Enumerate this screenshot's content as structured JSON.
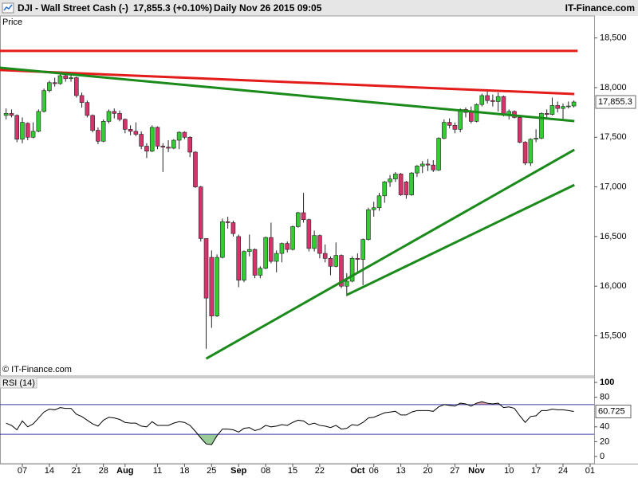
{
  "header": {
    "symbol": "DJI - Wall Street Cash (-)",
    "quote": "17,855.3 (+0.10%)",
    "period": "Daily",
    "timestamp": "Nov 26 2015 09:05",
    "brand": "IT-Finance.com"
  },
  "chart_data": [
    {
      "type": "candlestick",
      "panel_label": "Price",
      "watermark": "© IT-Finance.com",
      "up_color": "#33cc33",
      "down_color": "#d6336c",
      "xlim": [
        -1.13,
        108.75
      ],
      "xticks": [
        {
          "value": 3,
          "label": "07"
        },
        {
          "value": 8,
          "label": "14"
        },
        {
          "value": 13,
          "label": "21"
        },
        {
          "value": 18,
          "label": "28"
        },
        {
          "value": 22,
          "label": "Aug"
        },
        {
          "value": 28,
          "label": "11"
        },
        {
          "value": 33,
          "label": "18"
        },
        {
          "value": 38,
          "label": "25"
        },
        {
          "value": 43,
          "label": "Sep"
        },
        {
          "value": 48,
          "label": "08"
        },
        {
          "value": 53,
          "label": "15"
        },
        {
          "value": 58,
          "label": "22"
        },
        {
          "value": 65,
          "label": "Oct"
        },
        {
          "value": 68,
          "label": "06"
        },
        {
          "value": 73,
          "label": "13"
        },
        {
          "value": 78,
          "label": "20"
        },
        {
          "value": 83,
          "label": "27"
        },
        {
          "value": 87,
          "label": "Nov"
        },
        {
          "value": 93,
          "label": "10"
        },
        {
          "value": 98,
          "label": "17"
        },
        {
          "value": 103,
          "label": "24"
        },
        {
          "value": 108,
          "label": "01"
        }
      ],
      "ylim": [
        15095,
        18722
      ],
      "yticks": [
        {
          "value": 15500,
          "label": "15,500"
        },
        {
          "value": 16000,
          "label": "16,000"
        },
        {
          "value": 16500,
          "label": "16,500"
        },
        {
          "value": 17000,
          "label": "17,000"
        },
        {
          "value": 17500,
          "label": "17,500"
        },
        {
          "value": 18000,
          "label": "18,000"
        },
        {
          "value": 18500,
          "label": "18,500"
        }
      ],
      "last_value_label": "17,855.3",
      "ohlc": [
        [
          17720,
          17790,
          17680,
          17740
        ],
        [
          17740,
          17780,
          17700,
          17720
        ],
        [
          17720,
          17730,
          17450,
          17480
        ],
        [
          17480,
          17700,
          17440,
          17650
        ],
        [
          17640,
          17650,
          17470,
          17500
        ],
        [
          17500,
          17650,
          17490,
          17560
        ],
        [
          17560,
          17780,
          17550,
          17760
        ],
        [
          17760,
          17990,
          17750,
          17970
        ],
        [
          17970,
          18070,
          17950,
          18050
        ],
        [
          18050,
          18100,
          18010,
          18040
        ],
        [
          18040,
          18140,
          18030,
          18120
        ],
        [
          18120,
          18150,
          18060,
          18090
        ],
        [
          18090,
          18140,
          18060,
          18100
        ],
        [
          18100,
          18110,
          17900,
          17920
        ],
        [
          17920,
          17950,
          17800,
          17850
        ],
        [
          17850,
          17870,
          17700,
          17720
        ],
        [
          17720,
          17730,
          17550,
          17570
        ],
        [
          17570,
          17600,
          17430,
          17460
        ],
        [
          17460,
          17680,
          17450,
          17660
        ],
        [
          17660,
          17780,
          17640,
          17760
        ],
        [
          17760,
          17790,
          17690,
          17740
        ],
        [
          17740,
          17770,
          17660,
          17680
        ],
        [
          17680,
          17690,
          17540,
          17580
        ],
        [
          17580,
          17620,
          17520,
          17560
        ],
        [
          17560,
          17650,
          17510,
          17530
        ],
        [
          17530,
          17560,
          17380,
          17410
        ],
        [
          17410,
          17440,
          17290,
          17360
        ],
        [
          17360,
          17620,
          17350,
          17600
        ],
        [
          17600,
          17610,
          17380,
          17410
        ],
        [
          17410,
          17440,
          17150,
          17400
        ],
        [
          17400,
          17470,
          17350,
          17390
        ],
        [
          17390,
          17480,
          17380,
          17470
        ],
        [
          17470,
          17560,
          17380,
          17550
        ],
        [
          17550,
          17560,
          17480,
          17500
        ],
        [
          17500,
          17510,
          17300,
          17350
        ],
        [
          17350,
          17360,
          16990,
          17000
        ],
        [
          17000,
          17010,
          16450,
          16480
        ],
        [
          16480,
          16480,
          15370,
          15880
        ],
        [
          16290,
          16360,
          15580,
          15700
        ],
        [
          15700,
          16320,
          15690,
          16290
        ],
        [
          16290,
          16680,
          16280,
          16650
        ],
        [
          16650,
          16700,
          16580,
          16640
        ],
        [
          16640,
          16660,
          16500,
          16530
        ],
        [
          16500,
          16520,
          15990,
          16060
        ],
        [
          16060,
          16360,
          16040,
          16350
        ],
        [
          16350,
          16520,
          16300,
          16370
        ],
        [
          16370,
          16380,
          16080,
          16110
        ],
        [
          16110,
          16200,
          16080,
          16180
        ],
        [
          16180,
          16500,
          16170,
          16490
        ],
        [
          16490,
          16640,
          16230,
          16250
        ],
        [
          16250,
          16360,
          16140,
          16330
        ],
        [
          16330,
          16440,
          16240,
          16430
        ],
        [
          16430,
          16450,
          16340,
          16370
        ],
        [
          16370,
          16610,
          16360,
          16600
        ],
        [
          16600,
          16750,
          16590,
          16740
        ],
        [
          16740,
          16940,
          16640,
          16670
        ],
        [
          16670,
          16680,
          16350,
          16380
        ],
        [
          16380,
          16560,
          16350,
          16510
        ],
        [
          16510,
          16520,
          16280,
          16330
        ],
        [
          16330,
          16420,
          16240,
          16280
        ],
        [
          16280,
          16300,
          16110,
          16200
        ],
        [
          16200,
          16440,
          16190,
          16310
        ],
        [
          16310,
          16320,
          15980,
          16000
        ],
        [
          16000,
          16130,
          15900,
          16050
        ],
        [
          16050,
          16300,
          16040,
          16280
        ],
        [
          16280,
          16330,
          16130,
          16270
        ],
        [
          16270,
          16480,
          16010,
          16470
        ],
        [
          16470,
          16790,
          16460,
          16770
        ],
        [
          16770,
          16850,
          16700,
          16790
        ],
        [
          16790,
          16940,
          16760,
          16910
        ],
        [
          16910,
          17060,
          16840,
          17050
        ],
        [
          17050,
          17120,
          17000,
          17080
        ],
        [
          17080,
          17150,
          17050,
          17130
        ],
        [
          17130,
          17140,
          16910,
          16920
        ],
        [
          17050,
          17060,
          16880,
          16920
        ],
        [
          16920,
          17150,
          16910,
          17140
        ],
        [
          17140,
          17220,
          17100,
          17210
        ],
        [
          17210,
          17260,
          17140,
          17230
        ],
        [
          17230,
          17280,
          17160,
          17220
        ],
        [
          17220,
          17270,
          17150,
          17170
        ],
        [
          17170,
          17500,
          17160,
          17490
        ],
        [
          17490,
          17680,
          17480,
          17650
        ],
        [
          17650,
          17690,
          17590,
          17620
        ],
        [
          17620,
          17650,
          17540,
          17580
        ],
        [
          17580,
          17790,
          17550,
          17780
        ],
        [
          17780,
          17800,
          17700,
          17750
        ],
        [
          17750,
          17810,
          17640,
          17660
        ],
        [
          17660,
          17840,
          17650,
          17830
        ],
        [
          17830,
          17940,
          17810,
          17920
        ],
        [
          17920,
          17960,
          17840,
          17870
        ],
        [
          17870,
          17930,
          17810,
          17860
        ],
        [
          17860,
          17950,
          17760,
          17910
        ],
        [
          17910,
          17920,
          17710,
          17730
        ],
        [
          17730,
          17780,
          17680,
          17760
        ],
        [
          17760,
          17770,
          17690,
          17700
        ],
        [
          17700,
          17710,
          17440,
          17450
        ],
        [
          17450,
          17460,
          17220,
          17240
        ],
        [
          17240,
          17490,
          17210,
          17480
        ],
        [
          17480,
          17580,
          17450,
          17490
        ],
        [
          17490,
          17750,
          17480,
          17740
        ],
        [
          17740,
          17780,
          17700,
          17730
        ],
        [
          17730,
          17900,
          17720,
          17820
        ],
        [
          17820,
          17860,
          17750,
          17790
        ],
        [
          17790,
          17840,
          17680,
          17810
        ],
        [
          17810,
          17860,
          17790,
          17815
        ],
        [
          17815,
          17870,
          17800,
          17855.3
        ]
      ],
      "trendlines": [
        {
          "color": "#e31b1b",
          "x": [
            -1.13,
            105.7
          ],
          "y": [
            18370,
            18370
          ]
        },
        {
          "color": "#e31b1b",
          "x": [
            -1.13,
            105.1
          ],
          "y": [
            18177,
            17936
          ]
        },
        {
          "color": "#1a8a1a",
          "x": [
            -1.13,
            105.1
          ],
          "y": [
            18200,
            17663
          ]
        },
        {
          "color": "#1a8a1a",
          "x": [
            37,
            105.1
          ],
          "y": [
            15270,
            17374
          ]
        },
        {
          "color": "#1a8a1a",
          "x": [
            63,
            105.1
          ],
          "y": [
            15912,
            17020
          ]
        }
      ]
    },
    {
      "type": "line",
      "panel_label": "RSI (14)",
      "color": "#000000",
      "ylim": [
        -9.7,
        106.5
      ],
      "yticks": [
        0,
        20,
        40,
        80,
        100
      ],
      "levels": [
        30,
        70
      ],
      "level_color": "#3a3aa8",
      "overbought_fill": "#d9a0a8",
      "oversold_fill": "#99cc99",
      "values": [
        45,
        42,
        36,
        48,
        40,
        44,
        52,
        60,
        64,
        63,
        66,
        65,
        65,
        57,
        54,
        49,
        44,
        41,
        49,
        53,
        52,
        50,
        46,
        45,
        45,
        41,
        40,
        47,
        42,
        42,
        42,
        45,
        47,
        46,
        42,
        34,
        25,
        17,
        16,
        28,
        37,
        37,
        36,
        33,
        38,
        39,
        35,
        37,
        42,
        40,
        41,
        43,
        42,
        46,
        49,
        48,
        43,
        45,
        42,
        41,
        39,
        42,
        37,
        38,
        43,
        42,
        46,
        52,
        53,
        56,
        59,
        60,
        61,
        56,
        56,
        60,
        62,
        62,
        62,
        61,
        67,
        70,
        69,
        68,
        72,
        71,
        68,
        72,
        74,
        72,
        71,
        72,
        66,
        67,
        65,
        55,
        46,
        54,
        55,
        62,
        62,
        64,
        63,
        63,
        62,
        60.725
      ]
    }
  ]
}
